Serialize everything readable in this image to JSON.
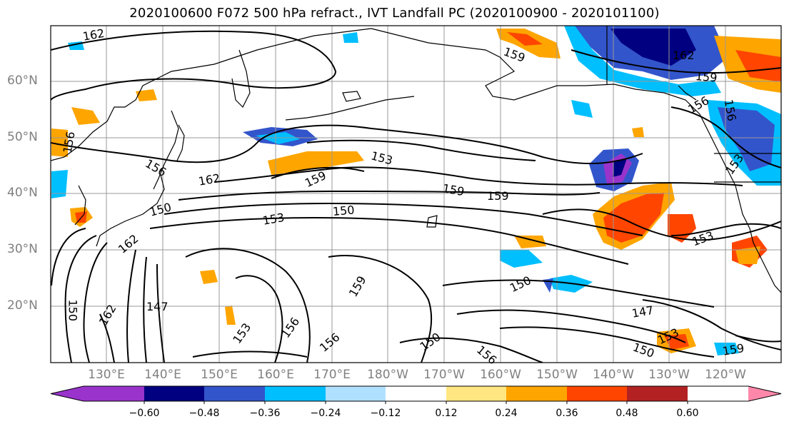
{
  "title": "2020100600 F072 500 hPa refract., IVT Landfall PC (2020100900 - 2020101100)",
  "lat_labels": [
    "60°N",
    "50°N",
    "40°N",
    "30°N",
    "20°N"
  ],
  "lon_labels": [
    "130°E",
    "140°E",
    "150°E",
    "160°E",
    "170°E",
    "180°W",
    "170°W",
    "160°W",
    "150°W",
    "140°W",
    "130°W",
    "120°W"
  ],
  "contour_labels": [
    "162",
    "159",
    "162",
    "159",
    "156",
    "156",
    "156",
    "153",
    "162",
    "159",
    "156",
    "150",
    "153",
    "150",
    "159",
    "162",
    "147",
    "150",
    "162",
    "159",
    "153",
    "156",
    "150",
    "156",
    "159",
    "150",
    "147",
    "150",
    "153",
    "159",
    "153",
    "156",
    "153"
  ],
  "colorbar": {
    "ticks": [
      "−0.60",
      "−0.48",
      "−0.36",
      "−0.24",
      "−0.12",
      "0.12",
      "0.24",
      "0.36",
      "0.48",
      "0.60"
    ],
    "colors": [
      "#9933cc",
      "#000080",
      "#3355cc",
      "#00bfff",
      "#b0e0ff",
      "#ffffff",
      "#ffe680",
      "#ffa500",
      "#ff4500",
      "#b22222",
      "#ff88aa"
    ]
  },
  "colors": {
    "land_outline": "#000000",
    "grid": "#999999",
    "contour": "#000000"
  }
}
